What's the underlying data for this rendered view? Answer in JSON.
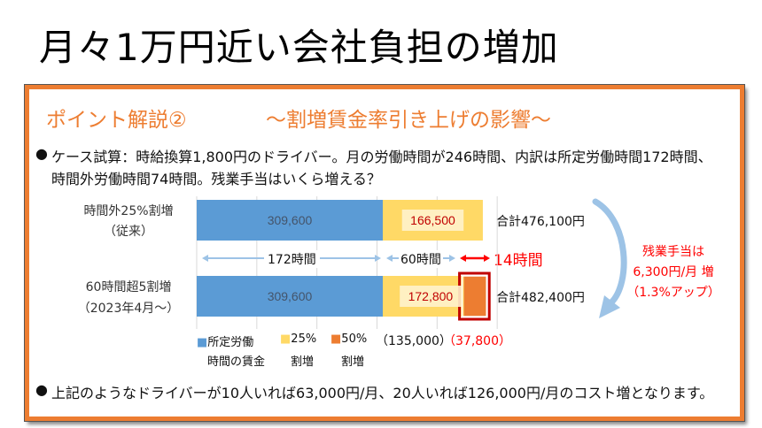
{
  "title": "月々1万円近い会社負担の増加",
  "heading": {
    "left": "ポイント解説②",
    "right": "～割増賃金率引き上げの影響～"
  },
  "bullets": [
    {
      "line1": "ケース試算：時給換算1,800円のドライバー。月の労働時間が246時間、内訳は所定労働時間172時間、",
      "line2": "時間外労働時間74時間。残業手当はいくら増える？"
    },
    {
      "line1": "上記のようなドライバーが10人いれば63,000円/月、20人いれば126,000円/月のコスト増となります。"
    }
  ],
  "chart_data": {
    "type": "bar",
    "orientation": "horizontal",
    "stacked": true,
    "xlim": [
      0,
      500000
    ],
    "grid": true,
    "categories": [
      {
        "line1": "時間外25%割増",
        "line2": "（従来）"
      },
      {
        "line1": "60時間超5割増",
        "line2": "（2023年4月～）"
      }
    ],
    "series": [
      {
        "name": "所定労働時間の賃金",
        "legend_line1": "所定労働",
        "legend_line2": "時間の賃金",
        "color": "#5B9BD5",
        "values": [
          309600,
          309600
        ],
        "labels": [
          "309,600",
          "309,600"
        ]
      },
      {
        "name": "25%割増",
        "legend_line1": "25%",
        "legend_line2": "割増",
        "color": "#FFD966",
        "values": [
          166500,
          135000
        ],
        "labels": [
          "166,500",
          "172,800"
        ]
      },
      {
        "name": "50%割増",
        "legend_line1": "50%",
        "legend_line2": "割増",
        "color": "#ED7D31",
        "values": [
          0,
          37800
        ]
      }
    ],
    "totals": [
      "合計476,100円",
      "合計482,400円"
    ],
    "breakdown": {
      "yellow": "（135,000）",
      "orange": "（37,800）"
    },
    "hours": {
      "base": "172時間",
      "overtime60": "60時間",
      "over60": "14時間"
    },
    "annotation": {
      "line1": "残業手当は",
      "line2": "6,300円/月 増",
      "line3": "（1.3%アップ）"
    },
    "colors": {
      "highlight": "#FF0000",
      "label_text": "#C00000",
      "box": "#C00000"
    }
  }
}
